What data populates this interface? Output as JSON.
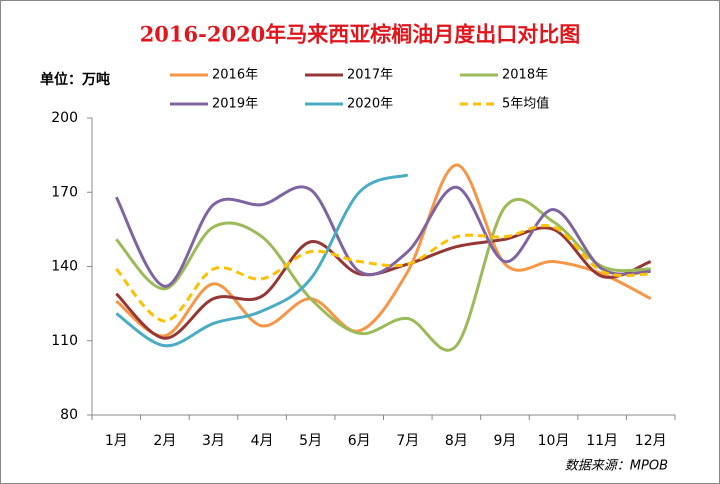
{
  "chart_data": {
    "type": "line",
    "title": "2016-2020年马来西亚棕榈油月度出口对比图",
    "y_label": "单位：万吨",
    "source": "数据来源：MPOB",
    "categories": [
      "1月",
      "2月",
      "3月",
      "4月",
      "5月",
      "6月",
      "7月",
      "8月",
      "9月",
      "10月",
      "11月",
      "12月"
    ],
    "ylim": [
      80,
      200
    ],
    "yticks": [
      80,
      110,
      140,
      170,
      200
    ],
    "smooth": true,
    "series": [
      {
        "name": "2016年",
        "color": "#f79646",
        "values": [
          126,
          112,
          133,
          116,
          127,
          114,
          138,
          181,
          141,
          142,
          137,
          127
        ]
      },
      {
        "name": "2017年",
        "color": "#953735",
        "values": [
          129,
          111,
          127,
          128,
          150,
          137,
          141,
          148,
          151,
          155,
          136,
          142
        ]
      },
      {
        "name": "2018年",
        "color": "#9bbb59",
        "values": [
          151,
          131,
          156,
          152,
          127,
          113,
          119,
          108,
          164,
          158,
          140,
          139
        ]
      },
      {
        "name": "2019年",
        "color": "#8064a2",
        "values": [
          168,
          132,
          165,
          165,
          171,
          138,
          146,
          172,
          142,
          163,
          139,
          138
        ]
      },
      {
        "name": "2020年",
        "color": "#4bacc6",
        "values": [
          121,
          108,
          117,
          122,
          135,
          170,
          177,
          null,
          null,
          null,
          null,
          null
        ]
      },
      {
        "name": "5年均值",
        "color": "#ffc000",
        "dash": true,
        "values": [
          139,
          118,
          139,
          135,
          146,
          142,
          141,
          152,
          152,
          156,
          138,
          137
        ]
      }
    ]
  }
}
